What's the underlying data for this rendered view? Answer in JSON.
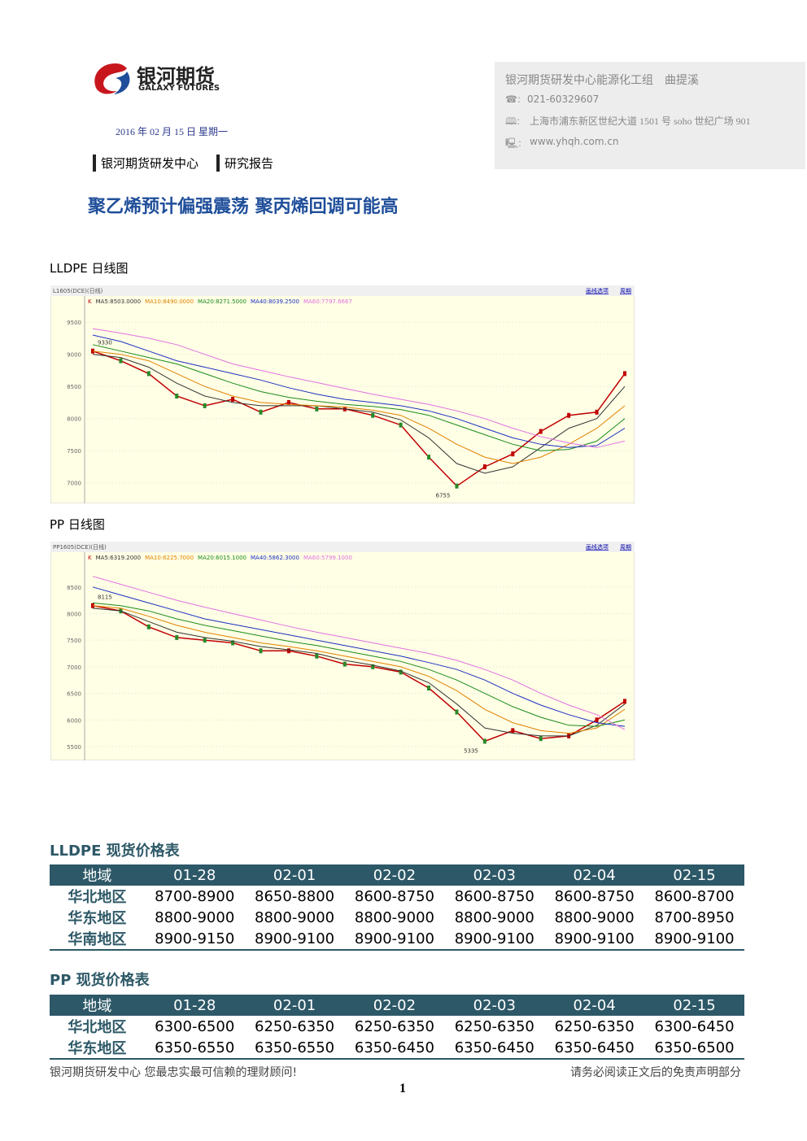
{
  "header": {
    "logo_cn": "银河期货",
    "logo_en": "GALAXY FUTURES",
    "date": "2016 年  02 月  15 日  星期一",
    "dept": "银河期货研发中心",
    "report": "研究报告",
    "contact": {
      "team": "银河期货研发中心能源化工组　曲提溪",
      "phone": "021-60329607",
      "address": "上海市浦东新区世纪大道 1501 号 soho 世纪广场 901",
      "url": "www.yhqh.com.cn"
    },
    "title": "聚乙烯预计偏强震荡  聚丙烯回调可能高"
  },
  "chart_data": [
    {
      "type": "line",
      "title": "LLDPE 日线图",
      "header": "L1605(DCE)(日线)",
      "links": [
        "画线选项",
        "周期"
      ],
      "high_label": "9330",
      "low_label": "6755",
      "ylim": [
        6680,
        9730
      ],
      "yticks": [
        7000,
        7500,
        8000,
        8500,
        9000,
        9500
      ],
      "grid": true,
      "series": [
        {
          "name": "K",
          "color": "#c00000",
          "values": [
            9050,
            8900,
            8700,
            8350,
            8200,
            8300,
            8100,
            8250,
            8150,
            8150,
            8050,
            7900,
            7400,
            6950,
            7250,
            7450,
            7800,
            8050,
            8100,
            8700
          ]
        },
        {
          "name": "MA5:8503.0000",
          "color": "#333333",
          "values": [
            9000,
            8950,
            8800,
            8550,
            8350,
            8250,
            8200,
            8200,
            8200,
            8150,
            8100,
            7980,
            7700,
            7300,
            7150,
            7250,
            7550,
            7850,
            8000,
            8500
          ]
        },
        {
          "name": "MA10:8490.0000",
          "color": "#e08000",
          "values": [
            9050,
            9000,
            8900,
            8700,
            8500,
            8350,
            8250,
            8220,
            8200,
            8180,
            8130,
            8050,
            7850,
            7600,
            7400,
            7300,
            7400,
            7600,
            7850,
            8200
          ]
        },
        {
          "name": "MA20:8271.5000",
          "color": "#1a8a1a",
          "values": [
            9150,
            9050,
            8950,
            8850,
            8700,
            8550,
            8420,
            8330,
            8270,
            8220,
            8190,
            8140,
            8050,
            7900,
            7750,
            7600,
            7500,
            7520,
            7650,
            8000
          ]
        },
        {
          "name": "MA40:8039.2500",
          "color": "#1c2fc0",
          "values": [
            9300,
            9200,
            9050,
            8900,
            8800,
            8700,
            8600,
            8480,
            8380,
            8300,
            8250,
            8200,
            8120,
            8000,
            7850,
            7700,
            7600,
            7550,
            7580,
            7850
          ]
        },
        {
          "name": "MA60:7797.6667",
          "color": "#e070e0",
          "values": [
            9400,
            9330,
            9250,
            9150,
            9000,
            8850,
            8750,
            8650,
            8560,
            8470,
            8380,
            8300,
            8220,
            8120,
            8000,
            7850,
            7720,
            7620,
            7550,
            7650
          ]
        }
      ]
    },
    {
      "type": "line",
      "title": "PP 日线图",
      "header": "PP1605(DCE)(日线)",
      "links": [
        "画线选项",
        "周期"
      ],
      "high_label": "8115",
      "low_label": "5335",
      "ylim": [
        5240,
        8940
      ],
      "yticks": [
        5500,
        6000,
        6500,
        7000,
        7500,
        8000,
        8500
      ],
      "grid": true,
      "series": [
        {
          "name": "K",
          "color": "#c00000",
          "values": [
            8150,
            8050,
            7750,
            7550,
            7500,
            7450,
            7300,
            7300,
            7200,
            7050,
            7000,
            6900,
            6600,
            6150,
            5600,
            5800,
            5650,
            5700,
            6000,
            6350
          ]
        },
        {
          "name": "MA5:6319.2000",
          "color": "#333333",
          "values": [
            8100,
            8050,
            7850,
            7650,
            7550,
            7480,
            7380,
            7320,
            7250,
            7120,
            7030,
            6920,
            6700,
            6300,
            5850,
            5750,
            5700,
            5700,
            5900,
            6300
          ]
        },
        {
          "name": "MA10:6225.7000",
          "color": "#e08000",
          "values": [
            8150,
            8100,
            7950,
            7780,
            7650,
            7550,
            7450,
            7380,
            7300,
            7200,
            7100,
            7000,
            6820,
            6550,
            6200,
            5950,
            5800,
            5750,
            5850,
            6200
          ]
        },
        {
          "name": "MA20:6015.1000",
          "color": "#1a8a1a",
          "values": [
            8200,
            8150,
            8050,
            7900,
            7780,
            7680,
            7580,
            7480,
            7400,
            7300,
            7200,
            7100,
            6950,
            6750,
            6500,
            6250,
            6050,
            5900,
            5880,
            6000
          ]
        },
        {
          "name": "MA40:5862.3000",
          "color": "#1c2fc0",
          "values": [
            8500,
            8350,
            8200,
            8050,
            7900,
            7800,
            7700,
            7600,
            7500,
            7400,
            7300,
            7200,
            7080,
            6950,
            6750,
            6500,
            6280,
            6100,
            5950,
            5880
          ]
        },
        {
          "name": "MA60:5799.1000",
          "color": "#e070e0",
          "values": [
            8700,
            8550,
            8400,
            8250,
            8120,
            8000,
            7880,
            7760,
            7650,
            7550,
            7450,
            7350,
            7250,
            7120,
            6950,
            6750,
            6500,
            6280,
            6100,
            5820
          ]
        }
      ]
    }
  ],
  "tables": [
    {
      "title": "LLDPE 现货价格表",
      "columns": [
        "地域",
        "01-28",
        "02-01",
        "02-02",
        "02-03",
        "02-04",
        "02-15"
      ],
      "rows": [
        [
          "华北地区",
          "8700-8900",
          "8650-8800",
          "8600-8750",
          "8600-8750",
          "8600-8750",
          "8600-8700"
        ],
        [
          "华东地区",
          "8800-9000",
          "8800-9000",
          "8800-9000",
          "8800-9000",
          "8800-9000",
          "8700-8950"
        ],
        [
          "华南地区",
          "8900-9150",
          "8900-9100",
          "8900-9100",
          "8900-9100",
          "8900-9100",
          "8900-9100"
        ]
      ]
    },
    {
      "title": "PP 现货价格表",
      "columns": [
        "地域",
        "01-28",
        "02-01",
        "02-02",
        "02-03",
        "02-04",
        "02-15"
      ],
      "rows": [
        [
          "华北地区",
          "6300-6500",
          "6250-6350",
          "6250-6350",
          "6250-6350",
          "6250-6350",
          "6300-6450"
        ],
        [
          "华东地区",
          "6350-6550",
          "6350-6550",
          "6350-6450",
          "6350-6450",
          "6350-6450",
          "6350-6500"
        ]
      ]
    }
  ],
  "footer": {
    "left": "银河期货研发中心  您最忠实最可信赖的理财顾问!",
    "right": "请务必阅读正文后的免责声明部分",
    "page": "1"
  }
}
